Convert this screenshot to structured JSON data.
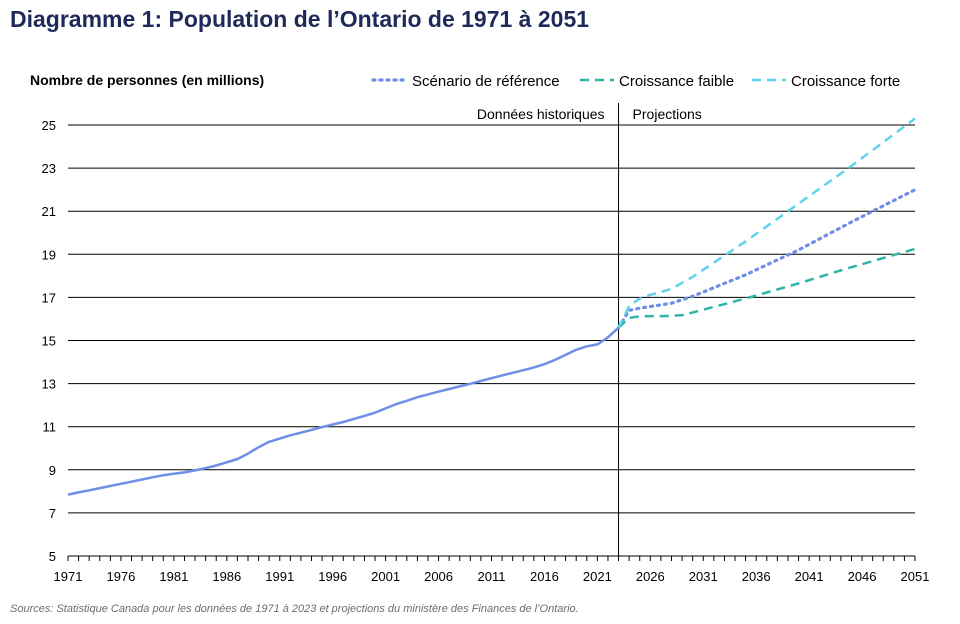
{
  "title": "Diagramme 1: Population de l’Ontario de 1971 à 2051",
  "source": "Sources: Statistique Canada pour les données de 1971 à 2023 et projections du ministère des Finances de l’Ontario.",
  "chart_data": {
    "type": "line",
    "ylabel": "Nombre de personnes (en millions)",
    "xlabel": "",
    "xlim": [
      1971,
      2051
    ],
    "ylim": [
      5,
      25
    ],
    "y_ticks": [
      5,
      7,
      9,
      11,
      13,
      15,
      17,
      19,
      21,
      23,
      25
    ],
    "x_ticks": [
      1971,
      1976,
      1981,
      1986,
      1991,
      1996,
      2001,
      2006,
      2011,
      2016,
      2021,
      2026,
      2031,
      2036,
      2041,
      2046,
      2051
    ],
    "grid": true,
    "legend_position": "top-right",
    "divider_year": 2023,
    "annotations": {
      "left": "Données historiques",
      "right": "Projections"
    },
    "series": [
      {
        "name": "Historique",
        "style": "solid",
        "color": "#6f8ee6",
        "in_legend": false,
        "x": [
          1971,
          1972,
          1973,
          1974,
          1975,
          1976,
          1977,
          1978,
          1979,
          1980,
          1981,
          1982,
          1983,
          1984,
          1985,
          1986,
          1987,
          1988,
          1989,
          1990,
          1991,
          1992,
          1993,
          1994,
          1995,
          1996,
          1997,
          1998,
          1999,
          2000,
          2001,
          2002,
          2003,
          2004,
          2005,
          2006,
          2007,
          2008,
          2009,
          2010,
          2011,
          2012,
          2013,
          2014,
          2015,
          2016,
          2017,
          2018,
          2019,
          2020,
          2021,
          2022,
          2023
        ],
        "values": [
          7.85,
          7.95,
          8.05,
          8.15,
          8.25,
          8.35,
          8.45,
          8.55,
          8.65,
          8.75,
          8.82,
          8.88,
          8.97,
          9.08,
          9.2,
          9.35,
          9.5,
          9.75,
          10.05,
          10.3,
          10.45,
          10.6,
          10.72,
          10.85,
          10.98,
          11.1,
          11.22,
          11.36,
          11.5,
          11.65,
          11.85,
          12.05,
          12.2,
          12.37,
          12.5,
          12.63,
          12.75,
          12.87,
          12.99,
          13.12,
          13.25,
          13.38,
          13.5,
          13.62,
          13.75,
          13.9,
          14.1,
          14.33,
          14.57,
          14.73,
          14.82,
          15.15,
          15.6
        ]
      },
      {
        "name": "Scénario de référence",
        "style": "dotted",
        "color": "#6f8ee6",
        "in_legend": true,
        "x": [
          2023,
          2024,
          2025,
          2026,
          2027,
          2028,
          2030,
          2035,
          2040,
          2045,
          2051
        ],
        "values": [
          15.6,
          16.4,
          16.5,
          16.58,
          16.65,
          16.73,
          17.05,
          18.05,
          19.2,
          20.5,
          22.0
        ]
      },
      {
        "name": "Croissance faible",
        "style": "dashed",
        "color": "#2fb5a5",
        "in_legend": true,
        "x": [
          2023,
          2024,
          2025,
          2026,
          2027,
          2028,
          2029,
          2030,
          2035,
          2040,
          2045,
          2051
        ],
        "values": [
          15.6,
          16.05,
          16.12,
          16.13,
          16.13,
          16.14,
          16.18,
          16.3,
          16.95,
          17.65,
          18.4,
          19.25
        ]
      },
      {
        "name": "Croissance forte",
        "style": "dashed",
        "color": "#5fd2ee",
        "in_legend": true,
        "x": [
          2023,
          2024,
          2025,
          2026,
          2027,
          2028,
          2030,
          2035,
          2040,
          2045,
          2051
        ],
        "values": [
          15.6,
          16.6,
          16.95,
          17.12,
          17.25,
          17.4,
          17.95,
          19.6,
          21.35,
          23.1,
          25.3
        ]
      }
    ]
  }
}
